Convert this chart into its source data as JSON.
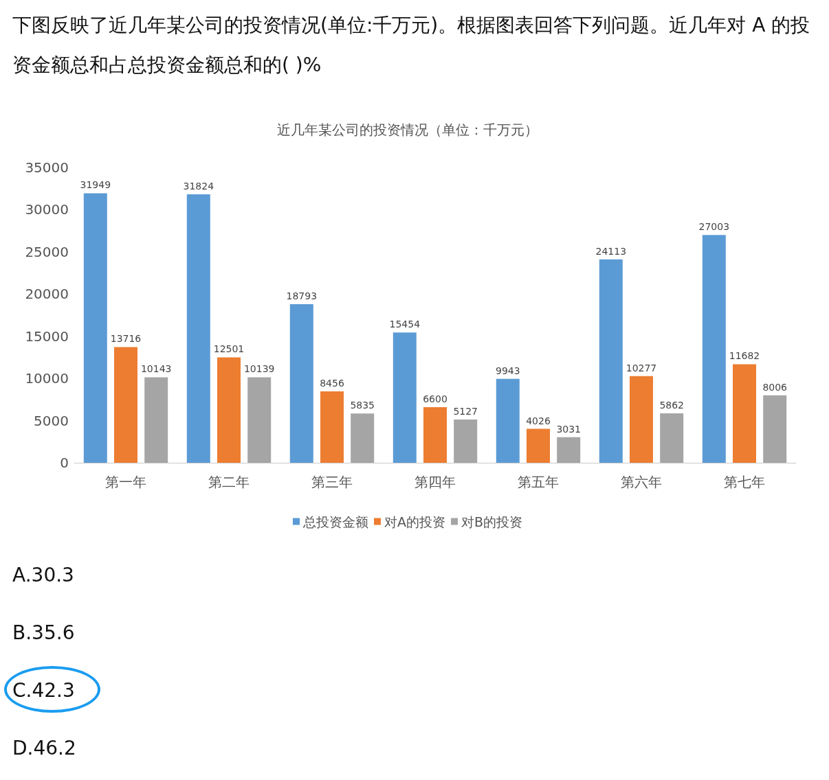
{
  "chart_data": {
    "type": "bar",
    "title": "近几年某公司的投资情况（单位：千万元）",
    "annotations": [
      "下图反映了近几年某公司的投资情况(单位:千万元)。根据图表回答下列问题。近几年对 A 的投资金额总和占总投资金额总和的(      )%",
      "A.30.3",
      "B.35.6",
      "C.42.3",
      "D.46.2"
    ],
    "categories": [
      "第一年",
      "第二年",
      "第三年",
      "第四年",
      "第五年",
      "第六年",
      "第七年"
    ],
    "series": [
      {
        "name": "总投资金额",
        "color": "#5b9bd5",
        "values": [
          31949,
          31824,
          18793,
          15454,
          9943,
          24113,
          27003
        ]
      },
      {
        "name": "对A的投资",
        "color": "#ed7d31",
        "values": [
          13716,
          12501,
          8456,
          6600,
          4026,
          10277,
          11682
        ]
      },
      {
        "name": "对B的投资",
        "color": "#a5a5a5",
        "values": [
          10143,
          10139,
          5835,
          5127,
          3031,
          5862,
          8006
        ]
      }
    ],
    "ylim": [
      0,
      35000
    ],
    "yticks": [
      0,
      5000,
      10000,
      15000,
      20000,
      25000,
      30000,
      35000
    ],
    "grid": false,
    "legend": "bottom",
    "data_labels": true
  }
}
